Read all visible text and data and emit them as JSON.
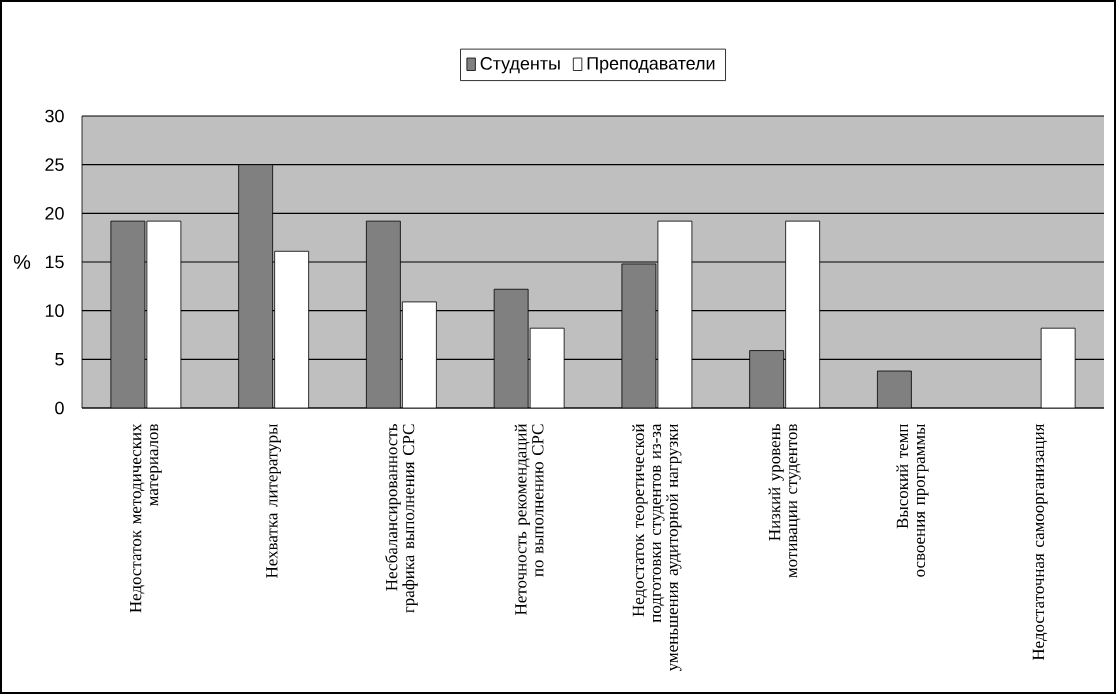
{
  "chart_data": {
    "type": "bar",
    "ylabel": "%",
    "categories": [
      "Недостаток методических материалов",
      "Нехватка литературы",
      "Несбалансированность графика выполнения СРС",
      "Неточность рекомендаций по выполнению СРС",
      "Недостаток теоретической подготовки студентов из-за уменьшения аудиторной нагрузки",
      "Низкий уровень мотивации студентов",
      "Высокий темп освоения программы",
      "Недостаточная самоорганизация"
    ],
    "series": [
      {
        "name": "Студенты",
        "color": "#808080",
        "values": [
          19.2,
          25,
          19.2,
          12.2,
          14.8,
          5.9,
          3.8,
          null
        ]
      },
      {
        "name": "Преподаватели",
        "color": "#ffffff",
        "values": [
          19.2,
          16.1,
          10.9,
          8.2,
          19.2,
          19.2,
          null,
          8.2
        ]
      }
    ],
    "ylim": [
      0,
      30
    ],
    "yticks": [
      0,
      5,
      10,
      15,
      20,
      25,
      30
    ],
    "grid": "y",
    "legend": "top"
  }
}
